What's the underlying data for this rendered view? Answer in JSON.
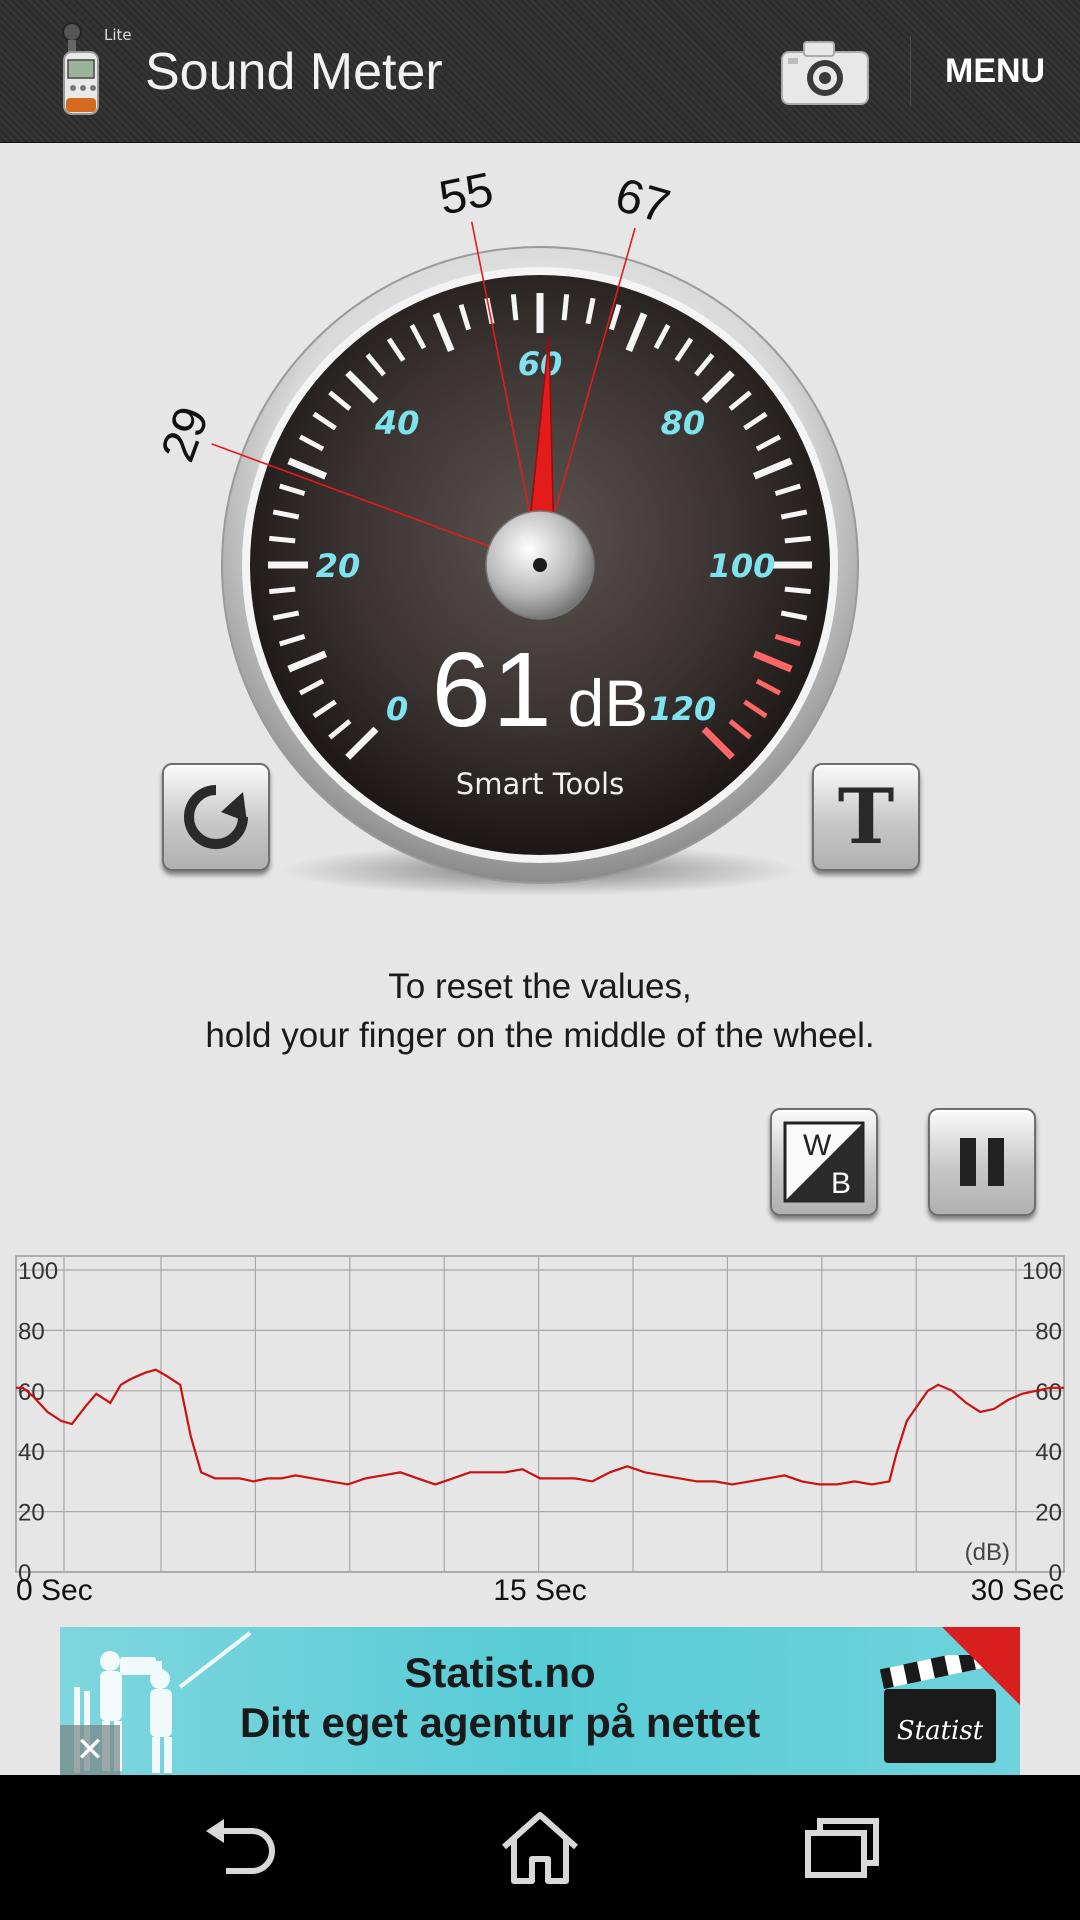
{
  "actionbar": {
    "title": "Sound Meter",
    "lite_badge": "Lite",
    "menu_label": "MENU",
    "app_icon": "sound-meter-app-icon",
    "camera_icon": "camera-icon"
  },
  "gauge": {
    "scale_min": 0,
    "scale_max": 120,
    "scale_labels": [
      "0",
      "20",
      "40",
      "60",
      "80",
      "100",
      "120"
    ],
    "reading_value": "61",
    "reading_unit": "dB",
    "min_marker": "29",
    "avg_marker": "55",
    "max_marker": "67",
    "brand": "Smart Tools",
    "needle_value": 61,
    "accent_color": "#7fe3ee",
    "needle_color": "#e31b1b"
  },
  "buttons": {
    "reset_icon": "refresh-icon",
    "text_label": "T",
    "wb_top": "W",
    "wb_bottom": "B",
    "pause_icon": "pause-icon"
  },
  "hint": {
    "line1": "To reset the values,",
    "line2": "hold your finger on the middle of the wheel."
  },
  "chart_data": {
    "type": "line",
    "x_start_label": "0 Sec",
    "x_mid_label": "15 Sec",
    "x_end_label": "30 Sec",
    "xlim": [
      0,
      30
    ],
    "ylim": [
      0,
      100
    ],
    "yticks": [
      "0",
      "20",
      "40",
      "60",
      "80",
      "100"
    ],
    "unit_label": "(dB)",
    "grid": true,
    "line_color": "#cc1111",
    "series": [
      {
        "x": [
          0,
          0.2,
          0.5,
          0.9,
          1.3,
          1.6,
          2.0,
          2.3,
          2.7,
          3.0,
          3.3,
          3.7,
          4.0,
          4.3,
          4.7,
          5.0,
          5.3,
          5.5,
          5.7,
          6.0,
          6.4,
          6.8,
          7.2,
          7.6,
          8.0,
          8.5,
          9.0,
          9.5,
          10.0,
          10.5,
          11.0,
          11.5,
          12.0,
          12.5,
          13.0,
          13.5,
          14.0,
          14.5,
          15.0,
          15.5,
          16.0,
          16.5,
          17.0,
          17.5,
          18.0,
          18.5,
          19.0,
          19.5,
          20.0,
          20.5,
          21.0,
          21.5,
          22.0,
          22.5,
          23.0,
          23.5,
          24.0,
          24.5,
          25.0,
          25.2,
          25.5,
          25.8,
          26.1,
          26.4,
          26.8,
          27.2,
          27.6,
          28.0,
          28.4,
          28.8,
          29.2,
          29.6,
          30.0
        ],
        "values": [
          61,
          61,
          58,
          53,
          50,
          49,
          55,
          59,
          56,
          62,
          64,
          66,
          67,
          65,
          62,
          45,
          33,
          32,
          31,
          31,
          31,
          30,
          31,
          31,
          32,
          31,
          30,
          29,
          31,
          32,
          33,
          31,
          29,
          31,
          33,
          33,
          33,
          34,
          31,
          31,
          31,
          30,
          33,
          35,
          33,
          32,
          31,
          30,
          30,
          29,
          30,
          31,
          32,
          30,
          29,
          29,
          30,
          29,
          30,
          39,
          50,
          55,
          60,
          62,
          60,
          56,
          53,
          54,
          57,
          59,
          60,
          61,
          61
        ]
      }
    ]
  },
  "ad": {
    "line1": "Statist.no",
    "line2": "Ditt eget agentur på nettet",
    "clapper_text": "Statist",
    "close_icon": "close-icon"
  },
  "navbar": {
    "back_icon": "back-icon",
    "home_icon": "home-icon",
    "recents_icon": "recents-icon"
  }
}
